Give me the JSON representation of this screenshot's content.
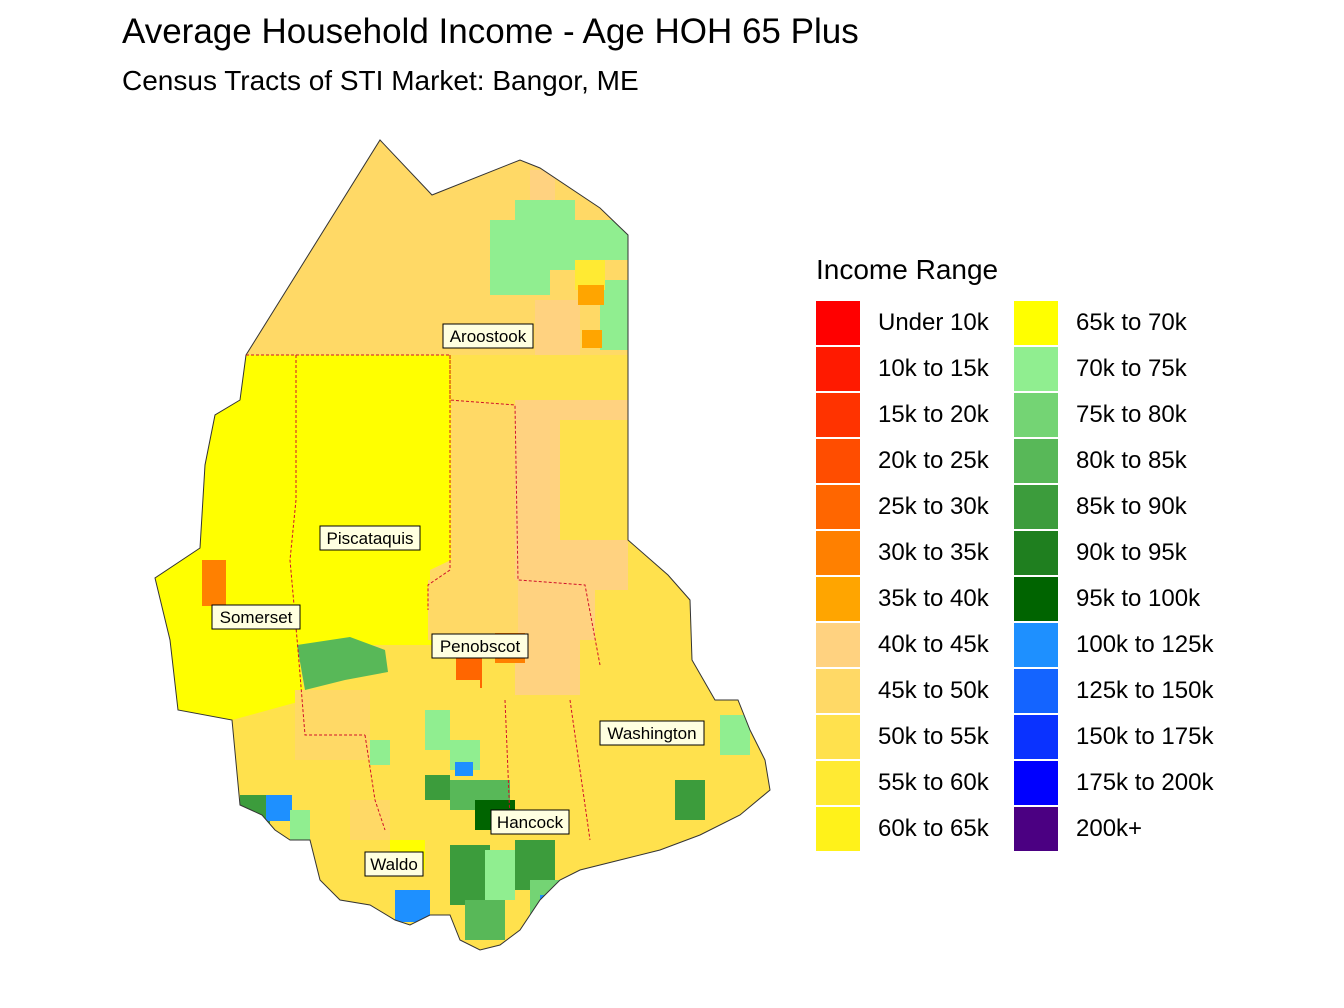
{
  "title": "Average Household Income - Age HOH 65 Plus",
  "subtitle": "Census Tracts of STI Market: Bangor, ME",
  "counties": [
    {
      "id": "aroostook",
      "label": "Aroostook"
    },
    {
      "id": "piscataquis",
      "label": "Piscataquis"
    },
    {
      "id": "somerset",
      "label": "Somerset"
    },
    {
      "id": "penobscot",
      "label": "Penobscot"
    },
    {
      "id": "washington",
      "label": "Washington"
    },
    {
      "id": "hancock",
      "label": "Hancock"
    },
    {
      "id": "waldo",
      "label": "Waldo"
    }
  ],
  "legend": {
    "title": "Income Range",
    "items": [
      {
        "label": "Under 10k",
        "color": "#ff0000"
      },
      {
        "label": "10k to 15k",
        "color": "#ff1a00"
      },
      {
        "label": "15k to 20k",
        "color": "#ff3300"
      },
      {
        "label": "20k to 25k",
        "color": "#ff4d00"
      },
      {
        "label": "25k to 30k",
        "color": "#ff6600"
      },
      {
        "label": "30k to 35k",
        "color": "#ff8000"
      },
      {
        "label": "35k to 40k",
        "color": "#ffa500"
      },
      {
        "label": "40k to 45k",
        "color": "#ffd280"
      },
      {
        "label": "45k to 50k",
        "color": "#ffd966"
      },
      {
        "label": "50k to 55k",
        "color": "#ffe14d"
      },
      {
        "label": "55k to 60k",
        "color": "#ffea33"
      },
      {
        "label": "60k to 65k",
        "color": "#fff21a"
      },
      {
        "label": "65k to 70k",
        "color": "#ffff00"
      },
      {
        "label": "70k to 75k",
        "color": "#90ee90"
      },
      {
        "label": "75k to 80k",
        "color": "#74d474"
      },
      {
        "label": "80k to 85k",
        "color": "#58b858"
      },
      {
        "label": "85k to 90k",
        "color": "#3c9c3c"
      },
      {
        "label": "90k to 95k",
        "color": "#1f7f1f"
      },
      {
        "label": "95k to 100k",
        "color": "#006400"
      },
      {
        "label": "100k to 125k",
        "color": "#1e90ff"
      },
      {
        "label": "125k to 150k",
        "color": "#1464ff"
      },
      {
        "label": "150k to 175k",
        "color": "#0a32ff"
      },
      {
        "label": "175k to 200k",
        "color": "#0000ff"
      },
      {
        "label": "200k+",
        "color": "#4b0082"
      }
    ]
  }
}
